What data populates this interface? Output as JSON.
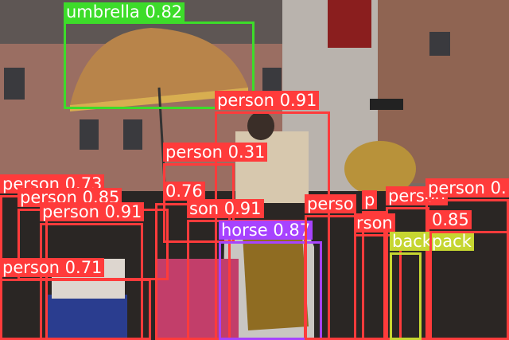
{
  "image": {
    "description_shown": "street parade photo with ceremonial umbrella, horse, crowd and brass instrument",
    "colors": {
      "person": "#ff3b3b",
      "umbrella": "#3ddc2a",
      "horse": "#a743ff",
      "backpack": "#c6d631",
      "label_text": "#ffffff"
    }
  },
  "detections": [
    {
      "class": "umbrella",
      "score": "0.82",
      "label": "umbrella 0.82"
    },
    {
      "class": "person",
      "score": "0.91",
      "label": "person 0.91"
    },
    {
      "class": "person",
      "score": "0.31",
      "label": "person 0.31"
    },
    {
      "class": "person",
      "score": "0.73",
      "label": "person 0.73"
    },
    {
      "class": "person",
      "score": "0.85",
      "label": "person 0.85"
    },
    {
      "class": "person",
      "score": "0.76",
      "label": "0.76"
    },
    {
      "class": "person",
      "score": "0.91",
      "label": "person 0.91"
    },
    {
      "class": "person",
      "score": "0.91",
      "label": "son 0.91"
    },
    {
      "class": "person",
      "score": "0.71",
      "label": "person 0.71"
    },
    {
      "class": "horse",
      "score": "0.87",
      "label": "horse 0.87"
    },
    {
      "class": "person",
      "score": "",
      "label": "perso"
    },
    {
      "class": "person",
      "score": "",
      "label": "p"
    },
    {
      "class": "person",
      "score": "",
      "label": "person"
    },
    {
      "class": "person",
      "score": "",
      "label": "person 0."
    },
    {
      "class": "person",
      "score": "",
      "label": "rson"
    },
    {
      "class": "backpack",
      "score": "",
      "label": "backpack"
    },
    {
      "class": "person",
      "score": "0.85",
      "label": "0.85"
    }
  ]
}
